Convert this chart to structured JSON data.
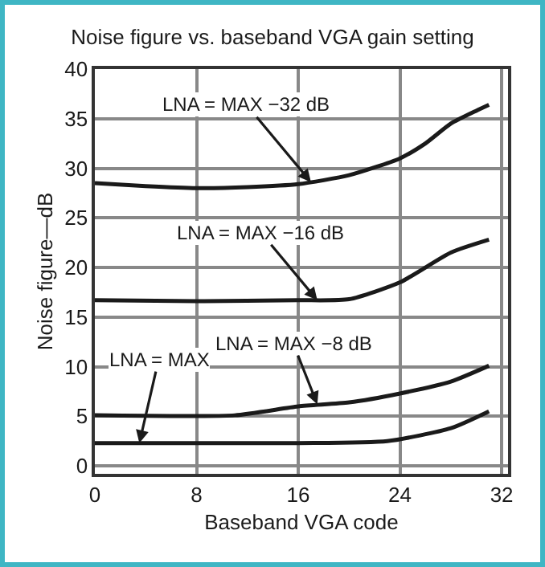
{
  "chart_data": {
    "type": "line",
    "title": "Noise figure vs. baseband VGA gain setting",
    "xlabel": "Baseband VGA code",
    "ylabel": "Noise figure—dB",
    "xlim": [
      0,
      32.5
    ],
    "xticks": [
      0,
      8,
      16,
      24,
      32
    ],
    "ylim": [
      -0.8,
      40
    ],
    "yticks": [
      0,
      5,
      10,
      15,
      20,
      25,
      30,
      35,
      40
    ],
    "grid": true,
    "marker": "none",
    "line_style": "solid",
    "series": [
      {
        "color": "#1a1a1a",
        "x": [
          0,
          4,
          8,
          12,
          16,
          20,
          24,
          26,
          28,
          30,
          31
        ],
        "values": [
          28.5,
          28.2,
          28,
          28.1,
          28.4,
          29.3,
          31,
          32.5,
          34.5,
          35.8,
          36.4
        ]
      },
      {
        "color": "#1a1a1a",
        "x": [
          0,
          8,
          16,
          20,
          24,
          28,
          31
        ],
        "values": [
          16.7,
          16.6,
          16.7,
          16.8,
          18.5,
          21.5,
          22.8
        ]
      },
      {
        "color": "#1a1a1a",
        "x": [
          0,
          11,
          16,
          20,
          24,
          28,
          31
        ],
        "values": [
          5.1,
          5.1,
          6,
          6.4,
          7.3,
          8.5,
          10.1
        ]
      },
      {
        "color": "#1a1a1a",
        "x": [
          0,
          16,
          23,
          28,
          31
        ],
        "values": [
          2.3,
          2.3,
          2.5,
          3.8,
          5.5
        ]
      }
    ],
    "annotations": [
      {
        "text": "LNA = MAX −32 dB",
        "x": 17,
        "y": 28.6
      },
      {
        "text": "LNA = MAX −16 dB",
        "x": 17.5,
        "y": 16.7
      },
      {
        "text": "LNA = MAX −8 dB",
        "x": 17.5,
        "y": 6.2
      },
      {
        "text": "LNA = MAX",
        "x": 3.5,
        "y": 2.3
      }
    ]
  }
}
